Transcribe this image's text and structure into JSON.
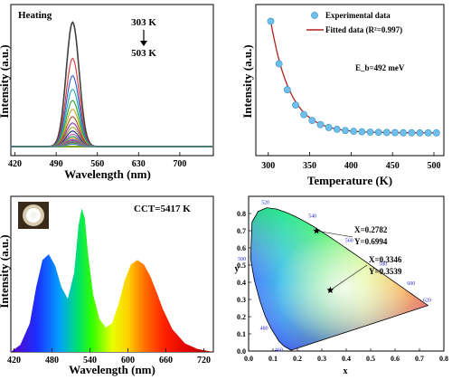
{
  "chart_data": [
    {
      "type": "line",
      "panel": "a",
      "annotation": "Heating",
      "temp_start": "303 K",
      "temp_end": "503 K",
      "xlabel": "Wavelength (nm)",
      "ylabel": "Intensity (a.u.)",
      "xlim": [
        413,
        757
      ],
      "ylim": [
        0,
        1.07
      ],
      "xticks": [
        "420",
        "490",
        "560",
        "630",
        "700"
      ],
      "peak_nm": 518,
      "curve_colors": [
        "#404040",
        "#e03030",
        "#2a5cd8",
        "#1aa8b8",
        "#2ca02c",
        "#b8b020",
        "#b05020",
        "#8a30a0",
        "#a0a030",
        "#202080",
        "#c060c0",
        "#20a060",
        "#d08030",
        "#6060d0",
        "#c03060",
        "#60a0c0",
        "#a08040",
        "#3030a0",
        "#50b050",
        "#c0c040",
        "#4080c0"
      ],
      "peak_heights": [
        1.0,
        0.71,
        0.57,
        0.46,
        0.37,
        0.3,
        0.24,
        0.19,
        0.155,
        0.125,
        0.1,
        0.082,
        0.068,
        0.056,
        0.047,
        0.04,
        0.034,
        0.029,
        0.025,
        0.022,
        0.019
      ]
    },
    {
      "type": "scatter",
      "panel": "b",
      "xlabel": "Temperature (K)",
      "ylabel": "Intensity (a.u.)",
      "xlim": [
        285,
        512
      ],
      "ylim": [
        0,
        1.05
      ],
      "xticks": [
        "300",
        "350",
        "400",
        "450",
        "500"
      ],
      "annotation": "E_b=492 meV",
      "legend": {
        "experimental": "Experimental data",
        "fitted": "Fitted data (R²=0.997)"
      },
      "x": [
        303,
        313,
        323,
        333,
        343,
        353,
        363,
        373,
        383,
        393,
        403,
        413,
        423,
        433,
        443,
        453,
        463,
        473,
        483,
        493,
        503
      ],
      "y": [
        1.0,
        0.64,
        0.42,
        0.29,
        0.21,
        0.16,
        0.125,
        0.1,
        0.085,
        0.075,
        0.068,
        0.064,
        0.061,
        0.059,
        0.058,
        0.057,
        0.056,
        0.056,
        0.055,
        0.055,
        0.055
      ],
      "fit_colors": {
        "points": "#6ec0ec",
        "fit": "#b22222"
      }
    },
    {
      "type": "area",
      "panel": "c",
      "annotation": "CCT=5417 K",
      "xlabel": "Wavelength (nm)",
      "ylabel": "Intensity (a.u.)",
      "xlim": [
        415,
        735
      ],
      "ylim": [
        0,
        1.02
      ],
      "xticks": [
        "420",
        "480",
        "540",
        "600",
        "660",
        "720"
      ],
      "x": [
        415,
        430,
        445,
        455,
        465,
        475,
        485,
        495,
        505,
        515,
        522,
        527,
        532,
        537,
        545,
        555,
        565,
        575,
        585,
        595,
        605,
        615,
        625,
        635,
        645,
        655,
        670,
        690,
        710,
        735
      ],
      "y": [
        0.0,
        0.05,
        0.2,
        0.45,
        0.64,
        0.68,
        0.6,
        0.45,
        0.37,
        0.55,
        0.88,
        1.0,
        0.93,
        0.68,
        0.4,
        0.23,
        0.17,
        0.2,
        0.33,
        0.5,
        0.61,
        0.64,
        0.61,
        0.53,
        0.42,
        0.3,
        0.16,
        0.06,
        0.02,
        0.0
      ]
    },
    {
      "type": "scatter",
      "panel": "d",
      "xlabel": "x",
      "ylabel": "y",
      "xlim": [
        0.0,
        0.8
      ],
      "ylim": [
        0.0,
        0.9
      ],
      "xticks": [
        "0.0",
        "0.1",
        "0.2",
        "0.3",
        "0.4",
        "0.5",
        "0.6",
        "0.7",
        "0.8"
      ],
      "yticks": [
        "0.0",
        "0.1",
        "0.2",
        "0.3",
        "0.4",
        "0.5",
        "0.6",
        "0.7",
        "0.8"
      ],
      "points": [
        {
          "x": 0.2782,
          "y": 0.6994,
          "label_x": "X=0.2782",
          "label_y": "Y=0.6994"
        },
        {
          "x": 0.3346,
          "y": 0.3539,
          "label_x": "X=0.3346",
          "label_y": "Y=0.3539"
        }
      ],
      "wavelength_labels": [
        "460",
        "480",
        "500",
        "520",
        "540",
        "560",
        "580",
        "600",
        "620"
      ]
    }
  ]
}
